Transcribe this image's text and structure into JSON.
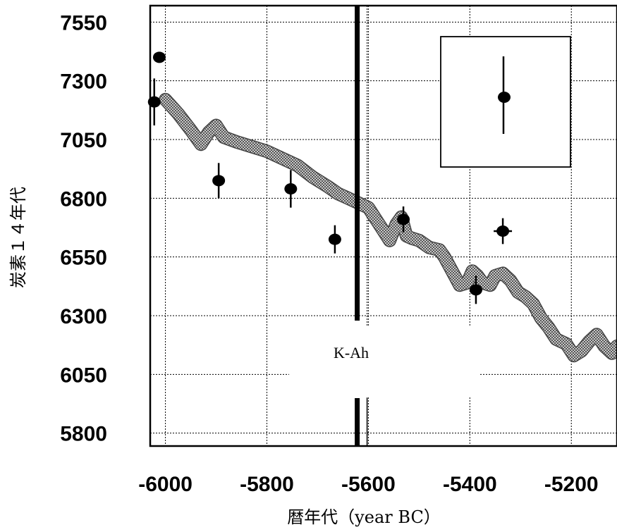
{
  "chart_data": {
    "type": "scatter",
    "title": "",
    "xlabel": "暦年代（year BC）",
    "ylabel": "炭素１４年代",
    "xlim": [
      -6030,
      -5110
    ],
    "ylim": [
      5745,
      7620
    ],
    "x_ticks": [
      -6000,
      -5800,
      -5600,
      -5400,
      -5200
    ],
    "y_ticks": [
      7550,
      7300,
      7050,
      6800,
      6550,
      6300,
      6050,
      5800
    ],
    "x_tick_labels": [
      "-6000",
      "-5800",
      "-5600",
      "-5400",
      "-5200"
    ],
    "y_tick_labels": [
      "7550",
      "7300",
      "7050",
      "6800",
      "6550",
      "6300",
      "6050",
      "5800"
    ],
    "grid": true,
    "vertical_marker": {
      "x": -5622,
      "label": "K-Ah"
    },
    "calibration_curve": {
      "x": [
        -6000,
        -5975,
        -5950,
        -5930,
        -5915,
        -5900,
        -5885,
        -5860,
        -5830,
        -5800,
        -5770,
        -5740,
        -5710,
        -5680,
        -5660,
        -5640,
        -5620,
        -5600,
        -5585,
        -5570,
        -5558,
        -5545,
        -5535,
        -5525,
        -5515,
        -5500,
        -5480,
        -5460,
        -5450,
        -5435,
        -5420,
        -5405,
        -5395,
        -5385,
        -5375,
        -5360,
        -5350,
        -5335,
        -5320,
        -5305,
        -5290,
        -5275,
        -5260,
        -5245,
        -5230,
        -5210,
        -5195,
        -5180,
        -5165,
        -5150,
        -5135,
        -5120,
        -5110
      ],
      "y": [
        7220,
        7160,
        7090,
        7030,
        7080,
        7110,
        7060,
        7040,
        7020,
        7000,
        6970,
        6940,
        6890,
        6850,
        6820,
        6800,
        6780,
        6760,
        6710,
        6660,
        6620,
        6690,
        6720,
        6640,
        6630,
        6620,
        6590,
        6580,
        6550,
        6490,
        6430,
        6440,
        6490,
        6470,
        6440,
        6430,
        6470,
        6480,
        6450,
        6400,
        6380,
        6350,
        6290,
        6250,
        6200,
        6180,
        6130,
        6150,
        6190,
        6220,
        6170,
        6140,
        6170
      ]
    },
    "data_points": [
      {
        "x": -6022,
        "y": 7210,
        "y_err": 100
      },
      {
        "x": -6012,
        "y": 7400,
        "y_err": 0
      },
      {
        "x": -5895,
        "y": 6875,
        "y_err": 75
      },
      {
        "x": -5753,
        "y": 6840,
        "y_err": 80
      },
      {
        "x": -5666,
        "y": 6625,
        "y_err": 60
      },
      {
        "x": -5531,
        "y": 6710,
        "y_err": 55
      },
      {
        "x": -5388,
        "y": 6410,
        "y_err": 60
      },
      {
        "x": -5335,
        "y": 6660,
        "y_err": 55,
        "x_err": 18
      }
    ],
    "inset_point": {
      "y_err_visible": true
    }
  }
}
